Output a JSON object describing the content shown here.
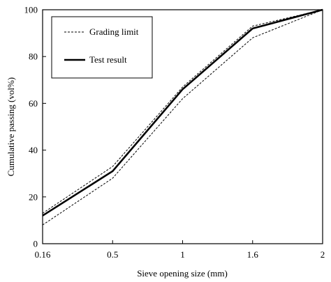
{
  "chart_data": {
    "type": "line",
    "title": "",
    "xlabel": "Sieve opening size (mm)",
    "ylabel": "Cumulative passing (vol%)",
    "categories": [
      "0.16",
      "0.5",
      "1",
      "1.6",
      "2"
    ],
    "ylim": [
      0,
      100
    ],
    "yticks": [
      0,
      20,
      40,
      60,
      80,
      100
    ],
    "grid": false,
    "legend_position": "top-left",
    "series": [
      {
        "name": "Grading limit",
        "style": "dashed",
        "values": [
          8,
          28,
          62,
          88,
          100
        ]
      },
      {
        "name": "Grading limit",
        "style": "dashed",
        "values": [
          13,
          33,
          67,
          93,
          100
        ]
      },
      {
        "name": "Test result",
        "style": "solid",
        "values": [
          12,
          31,
          66,
          92,
          100
        ]
      }
    ],
    "legend": [
      {
        "label": "Grading limit",
        "style": "dashed"
      },
      {
        "label": "Test result",
        "style": "solid"
      }
    ]
  }
}
